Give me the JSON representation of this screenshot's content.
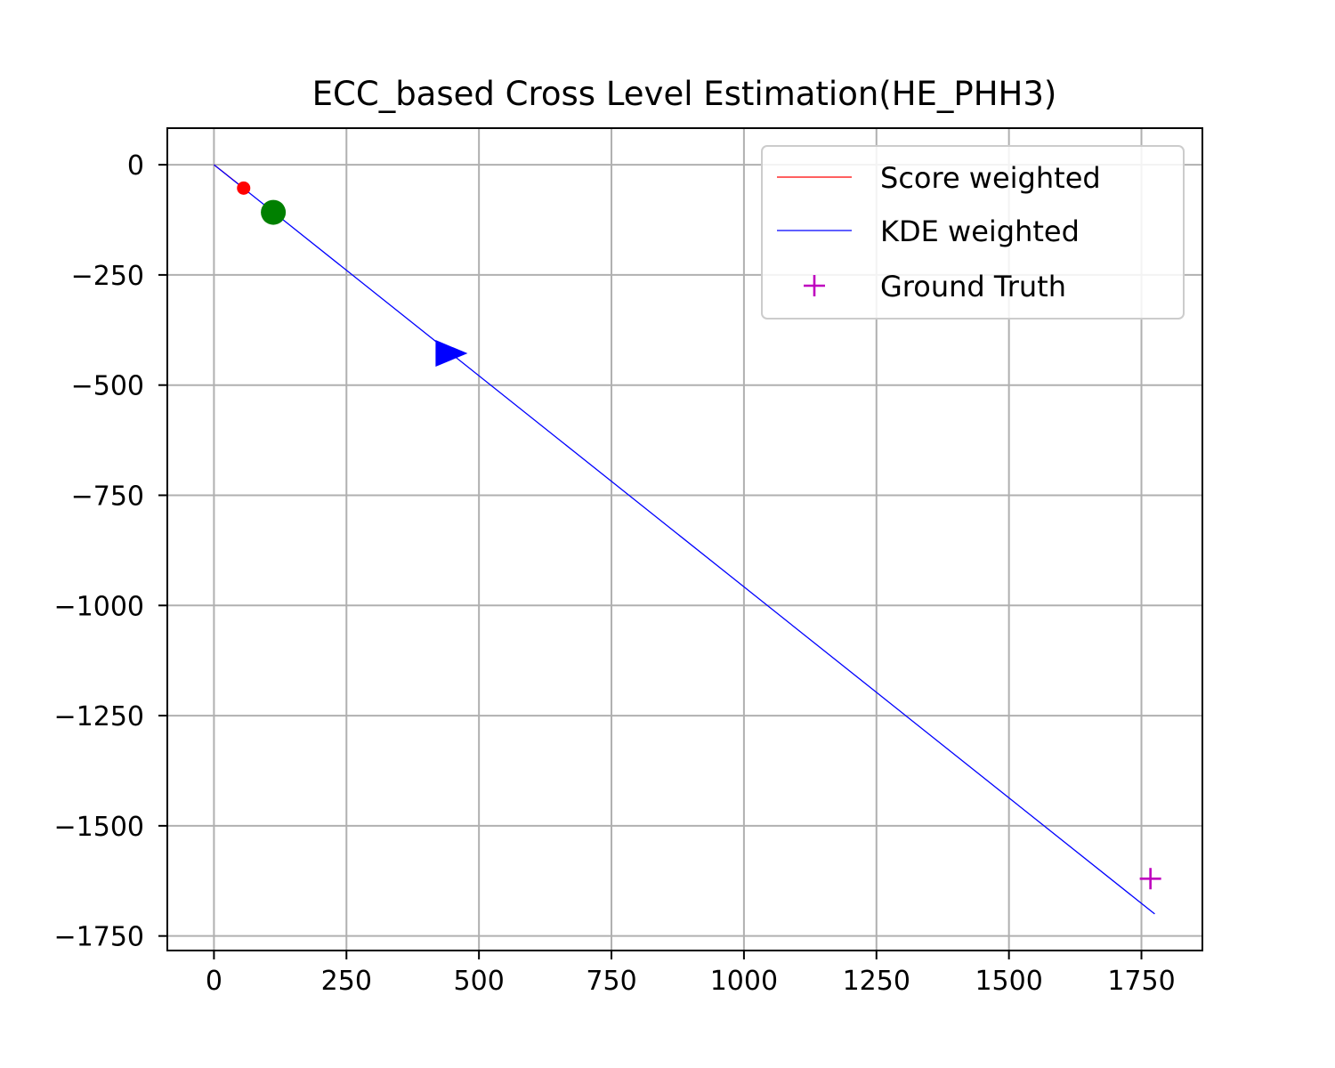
{
  "chart_data": {
    "type": "line",
    "title": "ECC_based Cross Level Estimation(HE_PHH3)",
    "xlabel": "",
    "ylabel": "",
    "xlim": [
      -88,
      1865
    ],
    "ylim": [
      -1783,
      83
    ],
    "xticks": [
      0,
      250,
      500,
      750,
      1000,
      1250,
      1500,
      1750
    ],
    "yticks": [
      0,
      -250,
      -500,
      -750,
      -1000,
      -1250,
      -1500,
      -1750
    ],
    "xtick_labels": [
      "0",
      "250",
      "500",
      "750",
      "1000",
      "1250",
      "1500",
      "1750"
    ],
    "ytick_labels": [
      "0",
      "−250",
      "−500",
      "−750",
      "−1000",
      "−1250",
      "−1500",
      "−1750"
    ],
    "grid": true,
    "legend_position": "upper right",
    "series": [
      {
        "name": "Score weighted",
        "kind": "line",
        "color": "#ff0000",
        "x": [
          0,
          56
        ],
        "y": [
          0,
          -53
        ]
      },
      {
        "name": "KDE weighted",
        "kind": "line",
        "color": "#0000ff",
        "x": [
          0,
          1775
        ],
        "y": [
          0,
          -1700
        ]
      },
      {
        "name": "Ground Truth",
        "kind": "marker",
        "marker": "plus",
        "color": "#bf00bf",
        "x": [
          1767
        ],
        "y": [
          -1620
        ]
      }
    ],
    "extra_markers": [
      {
        "marker": "circle",
        "color": "#ff0000",
        "size": "small",
        "x": 56,
        "y": -53
      },
      {
        "marker": "circle",
        "color": "#008000",
        "size": "large",
        "x": 112,
        "y": -108
      },
      {
        "marker": "triangle-right",
        "color": "#0000ff",
        "size": "large",
        "x": 445,
        "y": -428
      }
    ]
  }
}
